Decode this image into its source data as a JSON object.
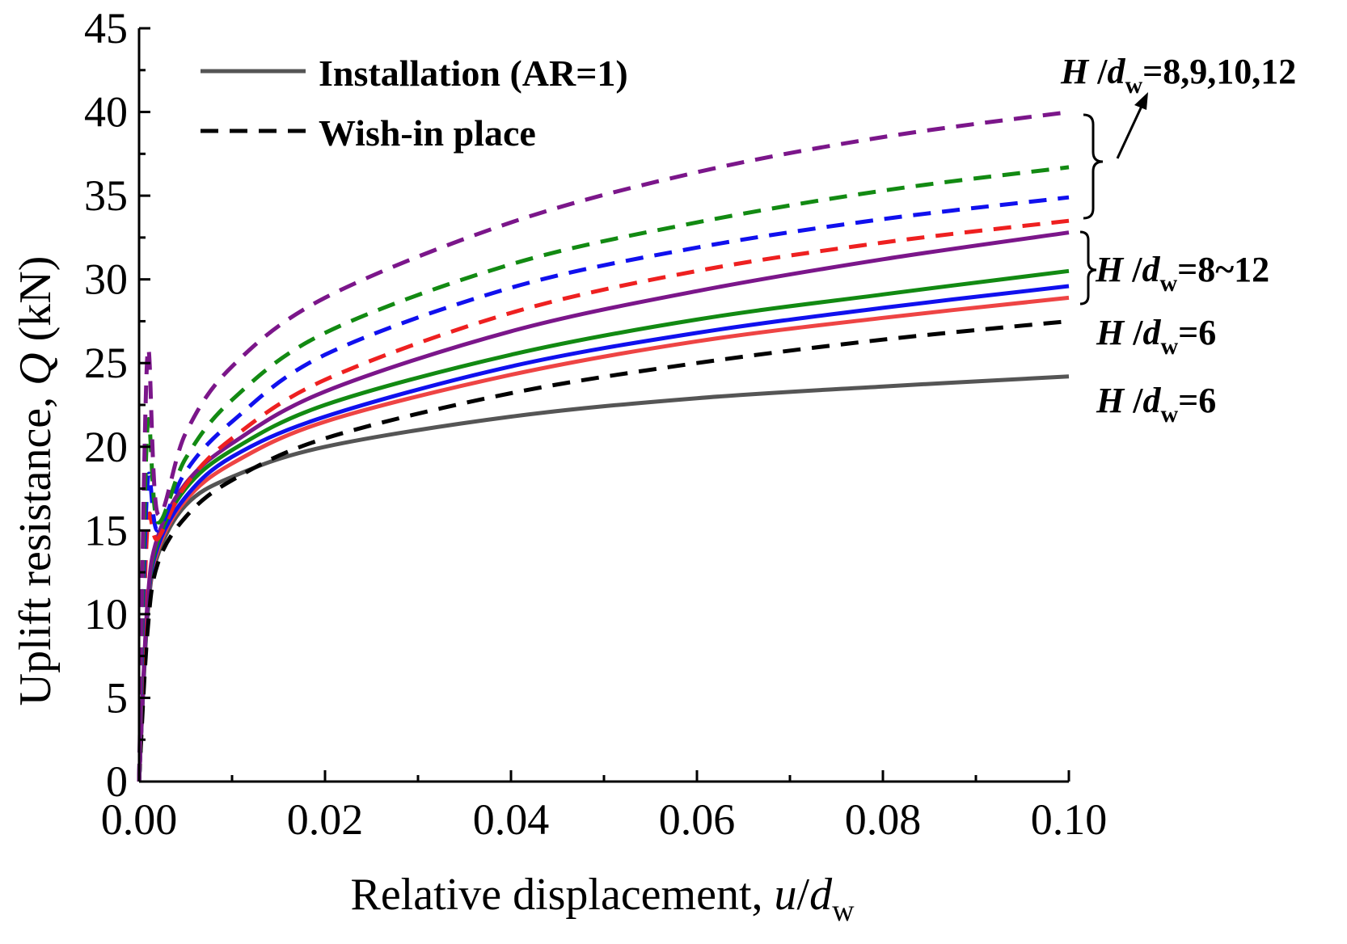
{
  "chart_data": {
    "type": "line",
    "xlabel": "Relative displacement, ",
    "xlabel_var": "u",
    "xlabel_sep": "/",
    "xlabel_var2": "d",
    "xlabel_sub": "w",
    "ylabel": "Uplift resistance, ",
    "ylabel_var": "Q",
    "ylabel_unit": " (kN)",
    "xlim": [
      0,
      0.1
    ],
    "ylim": [
      0,
      45
    ],
    "x_ticks": [
      0.0,
      0.02,
      0.04,
      0.06,
      0.08,
      0.1
    ],
    "x_tick_labels": [
      "0.00",
      "0.02",
      "0.04",
      "0.06",
      "0.08",
      "0.10"
    ],
    "y_ticks": [
      0,
      5,
      10,
      15,
      20,
      25,
      30,
      35,
      40,
      45
    ],
    "y_tick_labels": [
      "0",
      "5",
      "10",
      "15",
      "20",
      "25",
      "30",
      "35",
      "40",
      "45"
    ],
    "legend": [
      {
        "label": "Installation (AR=1)",
        "style": "solid",
        "color": "#555555"
      },
      {
        "label": "Wish-in place",
        "style": "dashed",
        "color": "#000000"
      }
    ],
    "series": [
      {
        "name": "Installation H/dw=6",
        "style": "solid",
        "color": "#555555",
        "k": 1.6,
        "x": [
          0.002,
          0.005,
          0.01,
          0.02,
          0.04,
          0.06,
          0.08,
          0.1
        ],
        "y": [
          13.5,
          16.5,
          18.2,
          20.0,
          21.8,
          22.9,
          23.6,
          24.2
        ]
      },
      {
        "name": "Installation H/dw=8",
        "style": "solid",
        "color": "#ee4444",
        "k": 1.6,
        "x": [
          0.002,
          0.005,
          0.01,
          0.02,
          0.04,
          0.06,
          0.08,
          0.1
        ],
        "y": [
          13.8,
          16.8,
          19.0,
          21.5,
          24.3,
          26.3,
          27.7,
          28.9
        ]
      },
      {
        "name": "Installation H/dw=9",
        "style": "solid",
        "color": "#1010ee",
        "k": 1.6,
        "x": [
          0.002,
          0.005,
          0.01,
          0.02,
          0.04,
          0.06,
          0.08,
          0.1
        ],
        "y": [
          14.0,
          17.0,
          19.4,
          21.8,
          24.8,
          26.8,
          28.3,
          29.6
        ]
      },
      {
        "name": "Installation H/dw=10",
        "style": "solid",
        "color": "#128a12",
        "k": 1.6,
        "x": [
          0.002,
          0.005,
          0.01,
          0.02,
          0.04,
          0.06,
          0.08,
          0.1
        ],
        "y": [
          14.3,
          17.5,
          19.8,
          22.5,
          25.5,
          27.6,
          29.1,
          30.5
        ]
      },
      {
        "name": "Installation H/dw=12",
        "style": "solid",
        "color": "#7b168a",
        "k": 1.6,
        "x": [
          0.002,
          0.005,
          0.01,
          0.02,
          0.04,
          0.06,
          0.08,
          0.1
        ],
        "y": [
          14.6,
          17.8,
          20.2,
          23.3,
          26.9,
          29.3,
          31.2,
          32.8
        ]
      },
      {
        "name": "Wish-in place H/dw=6",
        "style": "dashed",
        "color": "#000000",
        "k": 1.5,
        "x": [
          0.002,
          0.005,
          0.01,
          0.02,
          0.04,
          0.06,
          0.08,
          0.1
        ],
        "y": [
          13.0,
          15.8,
          18.0,
          20.5,
          23.2,
          25.0,
          26.4,
          27.5
        ]
      },
      {
        "name": "Wish-in place H/dw=8",
        "style": "dashed",
        "color": "#ee2020",
        "k": 2.3,
        "x": [
          0.002,
          0.005,
          0.01,
          0.02,
          0.04,
          0.06,
          0.08,
          0.1
        ],
        "y": [
          14.5,
          17.7,
          20.5,
          24.0,
          28.0,
          30.5,
          32.2,
          33.5
        ]
      },
      {
        "name": "Wish-in place H/dw=9",
        "style": "dashed",
        "color": "#1010ee",
        "k": 2.6,
        "x": [
          0.002,
          0.005,
          0.01,
          0.02,
          0.04,
          0.06,
          0.08,
          0.1
        ],
        "y": [
          15.0,
          18.5,
          21.5,
          25.5,
          29.5,
          31.9,
          33.6,
          34.9
        ]
      },
      {
        "name": "Wish-in place H/dw=10",
        "style": "dashed",
        "color": "#128a12",
        "k": 3.0,
        "x": [
          0.002,
          0.005,
          0.01,
          0.02,
          0.04,
          0.06,
          0.08,
          0.1
        ],
        "y": [
          15.5,
          19.3,
          22.8,
          26.8,
          30.9,
          33.4,
          35.3,
          36.7
        ]
      },
      {
        "name": "Wish-in place H/dw=12",
        "style": "dashed",
        "color": "#7b168a",
        "k": 3.5,
        "x": [
          0.002,
          0.005,
          0.01,
          0.02,
          0.04,
          0.06,
          0.08,
          0.1
        ],
        "y": [
          16.0,
          20.8,
          24.8,
          28.9,
          33.4,
          36.4,
          38.5,
          40.0
        ]
      }
    ],
    "annotations": [
      {
        "name": "wish-group",
        "var1": "H",
        "sep": " /",
        "var2": "d",
        "sub": "w",
        "value": "=8,9,10,12"
      },
      {
        "name": "install-group",
        "var1": "H",
        "sep": " /",
        "var2": "d",
        "sub": "w",
        "value": "=8~12"
      },
      {
        "name": "wish-6",
        "var1": "H",
        "sep": " /",
        "var2": "d",
        "sub": "w",
        "value": "=6"
      },
      {
        "name": "install-6",
        "var1": "H",
        "sep": " /",
        "var2": "d",
        "sub": "w",
        "value": "=6"
      }
    ]
  }
}
